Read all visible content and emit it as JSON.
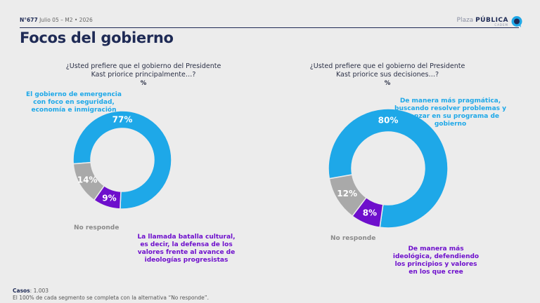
{
  "header": {
    "number": "N°677",
    "date_wave": "Julio 05 – M2 • 2026",
    "logo_prefix": "Plaza",
    "logo_bold": "PÚBLICA",
    "logo_sub": "CADEM"
  },
  "page_title": "Focos del gobierno",
  "colors": {
    "blue": "#1ea8e8",
    "purple": "#6e0fcc",
    "gray": "#a9a9a9",
    "navy": "#1e2a55"
  },
  "chart_data": [
    {
      "type": "pie",
      "title": "¿Usted prefiere que el gobierno del Presidente Kast priorice principalmente…?",
      "unit": "%",
      "slices": [
        {
          "label": "El gobierno de emergencia con foco en seguridad, economía e inmigración",
          "value": 77,
          "display": "77%",
          "color": "#1ea8e8"
        },
        {
          "label": "La llamada batalla cultural, es decir, la defensa de los valores frente al avance de ideologías progresistas",
          "value": 9,
          "display": "9%",
          "color": "#6e0fcc"
        },
        {
          "label": "No responde",
          "value": 14,
          "display": "14%",
          "color": "#a9a9a9"
        }
      ]
    },
    {
      "type": "pie",
      "title": "¿Usted prefiere que el gobierno del Presidente Kast priorice sus decisiones…?",
      "unit": "%",
      "slices": [
        {
          "label": "De manera más pragmática, buscando resolver problemas y avanzar en su programa de gobierno",
          "value": 80,
          "display": "80%",
          "color": "#1ea8e8"
        },
        {
          "label": "De manera más ideológica, defendiendo los principios y valores en los que cree",
          "value": 8,
          "display": "8%",
          "color": "#6e0fcc"
        },
        {
          "label": "No responde",
          "value": 12,
          "display": "12%",
          "color": "#a9a9a9"
        }
      ]
    }
  ],
  "questions": [
    {
      "text": "¿Usted prefiere que el gobierno del Presidente Kast priorice principalmente…?",
      "unit": "%"
    },
    {
      "text": "¿Usted prefiere que el gobierno del Presidente Kast priorice sus decisiones…?",
      "unit": "%"
    }
  ],
  "annotations": [
    {
      "main": "El gobierno de emergencia con foco en seguridad, economía e inmigración",
      "no_responde": "No responde",
      "alt": "La llamada batalla cultural, es decir, la defensa de los valores frente al avance de ideologías progresistas"
    },
    {
      "main": "De manera más pragmática, buscando resolver problemas y avanzar en su programa de gobierno",
      "no_responde": "No responde",
      "alt": "De manera más ideológica, defendiendo los principios y valores en los que cree"
    }
  ],
  "footer": {
    "cases_label": "Casos",
    "cases_value": ": 1.003",
    "note": "El 100% de cada segmento se completa con la alternativa “No responde”."
  }
}
